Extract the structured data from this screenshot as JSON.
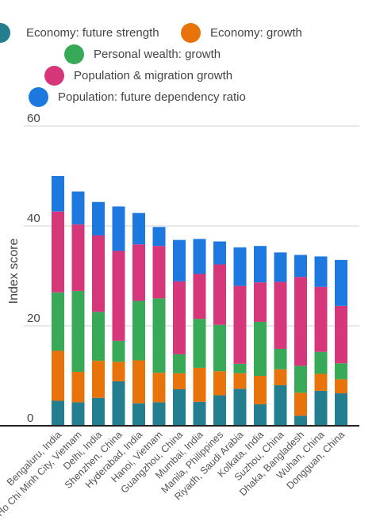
{
  "chart_data": {
    "type": "bar",
    "stacked": true,
    "ylabel": "Index score",
    "ylim": [
      0,
      60
    ],
    "yticks": [
      0,
      20,
      40,
      60
    ],
    "grid": true,
    "legend_position": "top",
    "categories": [
      "Bengaluru, India",
      "Ho Chi Minh City, Vietnam",
      "Delhi, India",
      "Shenzhen, China",
      "Hyderabad, India",
      "Hanoi, Vietnam",
      "Guangzhou, China",
      "Mumbai, India",
      "Manila, Philippines",
      "Riyadh, Saudi Arabia",
      "Kolkata, India",
      "Suzhou, China",
      "Dhaka, Bangladesh",
      "Wuhan, China",
      "Dongguan, China"
    ],
    "series": [
      {
        "name": "Economy: future strength",
        "color": "#237e8f",
        "values": [
          5.0,
          4.7,
          5.6,
          8.9,
          4.5,
          4.7,
          7.3,
          4.8,
          6.1,
          7.4,
          4.3,
          8.1,
          2.0,
          7.0,
          6.5
        ]
      },
      {
        "name": "Economy: growth",
        "color": "#e8730b",
        "values": [
          10.0,
          6.1,
          7.4,
          3.9,
          8.6,
          5.9,
          3.2,
          6.8,
          4.8,
          3.1,
          5.7,
          3.2,
          4.6,
          3.4,
          2.8
        ]
      },
      {
        "name": "Personal wealth: growth",
        "color": "#37a957",
        "values": [
          11.7,
          16.2,
          9.8,
          4.2,
          11.9,
          14.9,
          3.8,
          9.8,
          9.3,
          1.9,
          10.8,
          4.1,
          5.4,
          4.4,
          3.2
        ]
      },
      {
        "name": "Population & migration growth",
        "color": "#d6377a",
        "values": [
          16.2,
          13.3,
          15.3,
          18.0,
          11.3,
          10.5,
          14.6,
          9.0,
          12.1,
          15.6,
          7.9,
          13.4,
          17.8,
          13.0,
          11.5
        ]
      },
      {
        "name": "Population: future dependency ratio",
        "color": "#1d79e0",
        "values": [
          7.1,
          6.6,
          6.7,
          8.9,
          6.3,
          3.8,
          8.3,
          7.0,
          4.6,
          7.7,
          7.3,
          5.9,
          4.4,
          6.1,
          9.2
        ]
      }
    ]
  }
}
